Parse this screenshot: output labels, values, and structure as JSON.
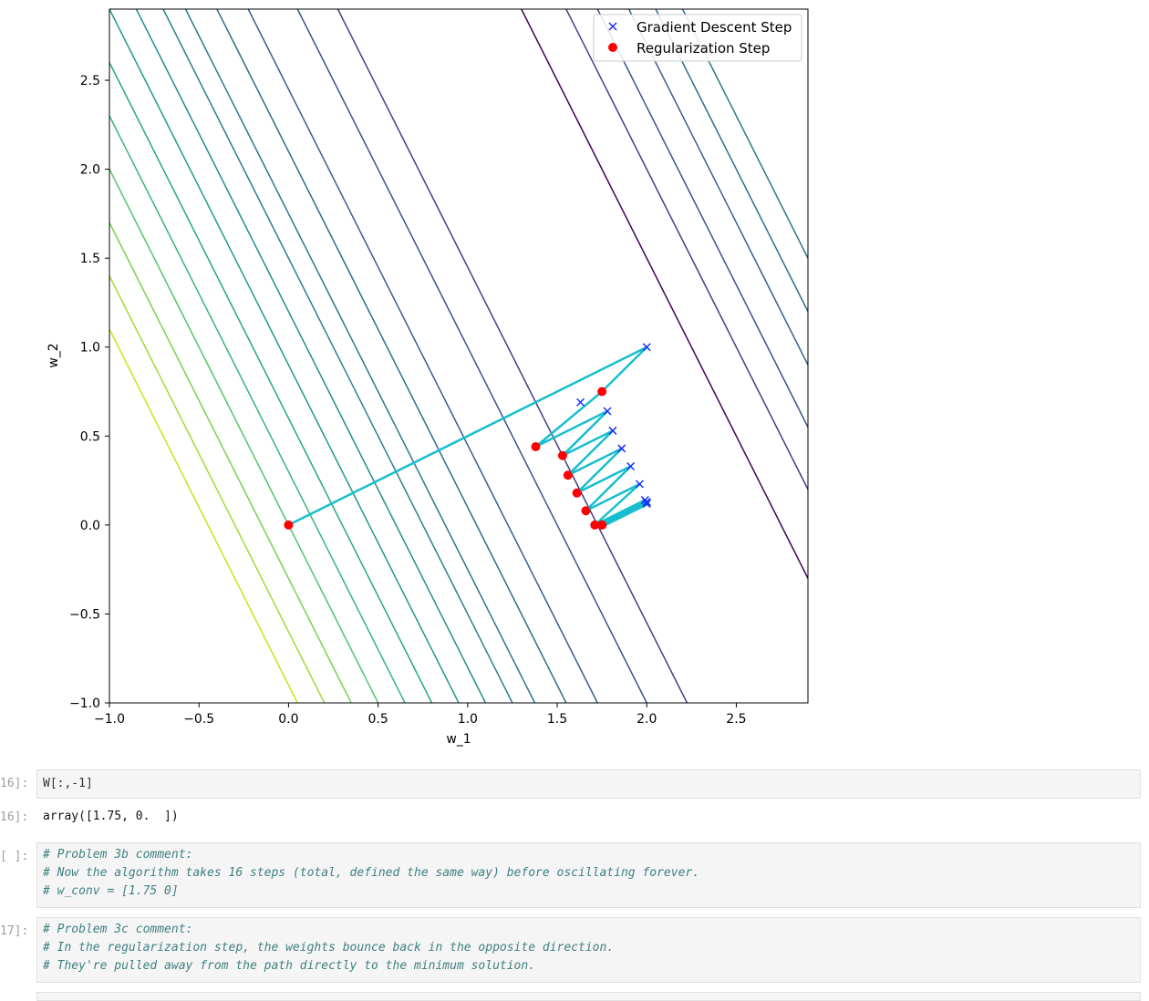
{
  "chart_data": {
    "type": "line",
    "xlabel": "w_1",
    "ylabel": "w_2",
    "xlim": [
      -1.0,
      2.9
    ],
    "ylim": [
      -1.0,
      2.9
    ],
    "x_ticks": [
      "−1.0",
      "−0.5",
      "0.0",
      "0.5",
      "1.0",
      "1.5",
      "2.0",
      "2.5"
    ],
    "y_ticks": [
      "−1.0",
      "−0.5",
      "0.0",
      "0.5",
      "1.0",
      "1.5",
      "2.0",
      "2.5"
    ],
    "legend": [
      "Gradient Descent Step",
      "Regularization Step"
    ],
    "legend_position": "top-right",
    "contours": {
      "description": "loss contours, lines of constant 2*w_1 + w_2",
      "levels": [
        -0.9,
        -0.6,
        -0.3,
        0.0,
        0.3,
        0.6,
        0.9,
        1.2,
        1.5,
        1.75,
        2.1,
        2.45,
        3.0,
        3.45,
        5.5,
        6.0,
        6.35,
        6.7,
        7.0,
        7.3
      ],
      "colors": [
        "#cde11d",
        "#a2da37",
        "#7ad151",
        "#52c569",
        "#35b779",
        "#22a884",
        "#1f9a8a",
        "#218e8d",
        "#26828e",
        "#2a788e",
        "#2f6c8e",
        "#355f8d",
        "#3b528b",
        "#433e85",
        "#440154",
        "#433e85",
        "#3b528b",
        "#355f8d",
        "#2f6c8e",
        "#2a788e"
      ]
    },
    "path": {
      "color": "#17becf",
      "points": [
        [
          0,
          0
        ],
        [
          2.0,
          1.0
        ],
        [
          1.75,
          0.75
        ],
        [
          1.38,
          0.44
        ],
        [
          1.78,
          0.64
        ],
        [
          1.53,
          0.39
        ],
        [
          1.81,
          0.53
        ],
        [
          1.56,
          0.28
        ],
        [
          1.86,
          0.43
        ],
        [
          1.61,
          0.18
        ],
        [
          1.91,
          0.33
        ],
        [
          1.66,
          0.08
        ],
        [
          1.96,
          0.23
        ],
        [
          1.71,
          0.0
        ],
        [
          1.99,
          0.14
        ],
        [
          1.75,
          0.0
        ],
        [
          2.0,
          0.13
        ],
        [
          1.75,
          0.0
        ],
        [
          2.0,
          0.125
        ],
        [
          1.75,
          0.0
        ]
      ]
    },
    "gradient_steps": [
      [
        2.0,
        1.0
      ],
      [
        1.63,
        0.69
      ],
      [
        1.78,
        0.64
      ],
      [
        1.81,
        0.53
      ],
      [
        1.86,
        0.43
      ],
      [
        1.91,
        0.33
      ],
      [
        1.96,
        0.23
      ],
      [
        1.99,
        0.14
      ],
      [
        2.0,
        0.13
      ],
      [
        2.0,
        0.125
      ],
      [
        2.0,
        0.12
      ]
    ],
    "regularization_steps": [
      [
        0.0,
        0.0
      ],
      [
        1.75,
        0.75
      ],
      [
        1.38,
        0.44
      ],
      [
        1.53,
        0.39
      ],
      [
        1.56,
        0.28
      ],
      [
        1.61,
        0.18
      ],
      [
        1.66,
        0.08
      ],
      [
        1.71,
        0.0
      ],
      [
        1.75,
        0.0
      ],
      [
        1.75,
        0.0
      ]
    ],
    "gd_color": "#1a2fff",
    "reg_color": "#ff0000"
  },
  "cells": [
    {
      "prompt": "16]:",
      "code": "W[:,-1]"
    },
    {
      "prompt": "16]:",
      "output": "array([1.75, 0.  ])"
    },
    {
      "prompt": "[ ]:",
      "lines": [
        "# Problem 3b comment:",
        "# Now the algorithm takes 16 steps (total, defined the same way) before oscillating forever.",
        "# w_conv = [1.75 0]"
      ]
    },
    {
      "prompt": "17]:",
      "lines": [
        "# Problem 3c comment:",
        "# In the regularization step, the weights bounce back in the opposite direction.",
        "# They're pulled away from the path directly to the minimum solution."
      ]
    }
  ]
}
